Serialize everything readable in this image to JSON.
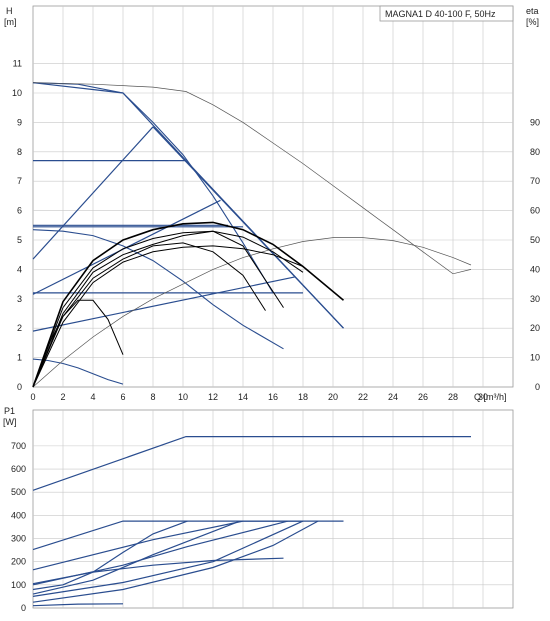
{
  "chart_data": [
    {
      "type": "line",
      "title": "MAGNA1 D 40-100 F, 50Hz",
      "ylabel": "H",
      "yunit": "[m]",
      "y2label": "eta",
      "y2unit": "[%]",
      "xlabel": "Q [m³/h]",
      "xlim": [
        0,
        32
      ],
      "ylim": [
        0,
        12
      ],
      "y2lim": [
        0,
        120
      ],
      "xticks": [
        0,
        2,
        4,
        6,
        8,
        10,
        12,
        14,
        16,
        18,
        20,
        22,
        24,
        26,
        28,
        30
      ],
      "yticks": [
        0,
        1,
        2,
        3,
        4,
        5,
        6,
        7,
        8,
        9,
        10,
        11
      ],
      "y2ticks": [
        0,
        10,
        20,
        30,
        40,
        50,
        60,
        70,
        80,
        90
      ],
      "grid": true,
      "colors": {
        "blue": "#2a4d8f",
        "black": "#000000",
        "grey": "#555555"
      },
      "blue_curves": [
        {
          "x": [
            0,
            3,
            6,
            8,
            10,
            12,
            14,
            16
          ],
          "y": [
            10.35,
            10.3,
            10.0,
            9.0,
            7.9,
            6.5,
            4.9,
            3.2
          ]
        },
        {
          "x": [
            0,
            1,
            2,
            3,
            4,
            5,
            6
          ],
          "y": [
            0.95,
            0.9,
            0.8,
            0.65,
            0.45,
            0.25,
            0.1
          ]
        },
        {
          "x": [
            0,
            2,
            4,
            6,
            8,
            10,
            12,
            14,
            16.7
          ],
          "y": [
            5.35,
            5.3,
            5.15,
            4.8,
            4.3,
            3.6,
            2.8,
            2.1,
            1.3
          ]
        }
      ],
      "blue_lines": [
        {
          "x": [
            0,
            6,
            10.2,
            20.7
          ],
          "y": [
            10.35,
            10.0,
            7.7,
            2.0
          ]
        },
        {
          "x": [
            0,
            10.2
          ],
          "y": [
            7.7,
            7.7
          ]
        },
        {
          "x": [
            0,
            8
          ],
          "y": [
            4.35,
            8.85
          ]
        },
        {
          "x": [
            8,
            20.7
          ],
          "y": [
            8.85,
            2.0
          ]
        },
        {
          "x": [
            0,
            13
          ],
          "y": [
            5.5,
            5.5
          ]
        },
        {
          "x": [
            0,
            12.5
          ],
          "y": [
            3.15,
            6.35
          ]
        },
        {
          "x": [
            0,
            18
          ],
          "y": [
            3.2,
            3.2
          ]
        },
        {
          "x": [
            0,
            17.5
          ],
          "y": [
            1.9,
            3.75
          ]
        },
        {
          "x": [
            0,
            14
          ],
          "y": [
            5.45,
            5.45
          ]
        }
      ],
      "black_curves": [
        {
          "x": [
            0,
            2,
            4,
            6,
            8,
            10,
            12,
            14,
            16,
            18,
            20.7
          ],
          "y": [
            0,
            2.9,
            4.3,
            5.0,
            5.35,
            5.55,
            5.6,
            5.35,
            4.85,
            4.1,
            2.95
          ]
        },
        {
          "x": [
            0,
            2,
            4,
            6,
            8,
            10,
            12,
            14,
            16,
            18
          ],
          "y": [
            0,
            2.7,
            4.05,
            4.7,
            5.05,
            5.25,
            5.3,
            5.1,
            4.6,
            3.9
          ]
        },
        {
          "x": [
            0,
            2,
            4,
            6,
            8,
            10,
            12,
            14,
            16.7
          ],
          "y": [
            0,
            2.5,
            3.9,
            4.5,
            4.85,
            5.15,
            5.3,
            4.8,
            2.7
          ]
        },
        {
          "x": [
            0,
            2,
            4,
            6,
            8,
            10,
            12,
            14,
            16,
            18
          ],
          "y": [
            0,
            2.2,
            3.55,
            4.25,
            4.6,
            4.75,
            4.8,
            4.7,
            4.5,
            4.1
          ]
        },
        {
          "x": [
            0,
            2,
            4,
            6,
            8,
            10,
            12,
            14,
            15.5
          ],
          "y": [
            0,
            2.4,
            3.7,
            4.35,
            4.8,
            4.9,
            4.6,
            3.8,
            2.6
          ]
        },
        {
          "x": [
            0,
            1,
            2,
            3,
            4,
            5,
            6
          ],
          "y": [
            0,
            1.4,
            2.4,
            2.95,
            2.95,
            2.3,
            1.1
          ]
        }
      ],
      "grey_curves": [
        {
          "x": [
            0,
            4,
            8,
            10.2,
            12,
            14,
            16,
            18,
            20,
            22,
            24,
            26,
            28,
            29.2
          ],
          "y": [
            10.35,
            10.3,
            10.2,
            10.05,
            9.6,
            9.0,
            8.3,
            7.6,
            6.85,
            6.1,
            5.35,
            4.6,
            3.85,
            4.0
          ]
        },
        {
          "x": [
            0,
            2,
            4,
            6,
            8,
            10,
            12,
            14,
            16,
            18,
            20,
            22,
            24,
            26,
            28,
            29.2
          ],
          "y2": [
            0,
            9,
            17,
            24,
            30,
            35,
            40,
            44,
            47,
            49.5,
            50.8,
            50.8,
            49.8,
            47.5,
            44,
            41.5
          ]
        }
      ]
    },
    {
      "type": "line",
      "ylabel": "P1",
      "yunit": "[W]",
      "xlim": [
        0,
        32
      ],
      "ylim": [
        0,
        800
      ],
      "yticks": [
        0,
        100,
        200,
        300,
        400,
        500,
        600,
        700
      ],
      "grid": true,
      "blue_lines": [
        {
          "x": [
            0,
            10.2,
            29.2
          ],
          "y": [
            508,
            740,
            740
          ]
        },
        {
          "x": [
            0,
            6,
            20.7
          ],
          "y": [
            252,
            375,
            375
          ]
        },
        {
          "x": [
            0,
            8,
            14,
            18
          ],
          "y": [
            165,
            295,
            375,
            375
          ]
        },
        {
          "x": [
            0,
            6,
            10.3,
            17
          ],
          "y": [
            100,
            185,
            265,
            375
          ]
        },
        {
          "x": [
            0,
            4,
            8,
            12,
            16.7
          ],
          "y": [
            105,
            155,
            185,
            205,
            215
          ]
        },
        {
          "x": [
            0,
            4,
            8,
            13.8
          ],
          "y": [
            60,
            120,
            230,
            375
          ]
        },
        {
          "x": [
            0,
            2,
            4,
            6,
            8,
            10.3
          ],
          "y": [
            80,
            100,
            155,
            240,
            320,
            375
          ]
        },
        {
          "x": [
            0,
            6,
            12,
            18
          ],
          "y": [
            50,
            110,
            200,
            375
          ]
        },
        {
          "x": [
            0,
            6,
            12,
            16,
            19
          ],
          "y": [
            25,
            80,
            175,
            270,
            375
          ]
        },
        {
          "x": [
            0,
            3,
            6
          ],
          "y": [
            10,
            17,
            18
          ]
        }
      ]
    }
  ]
}
